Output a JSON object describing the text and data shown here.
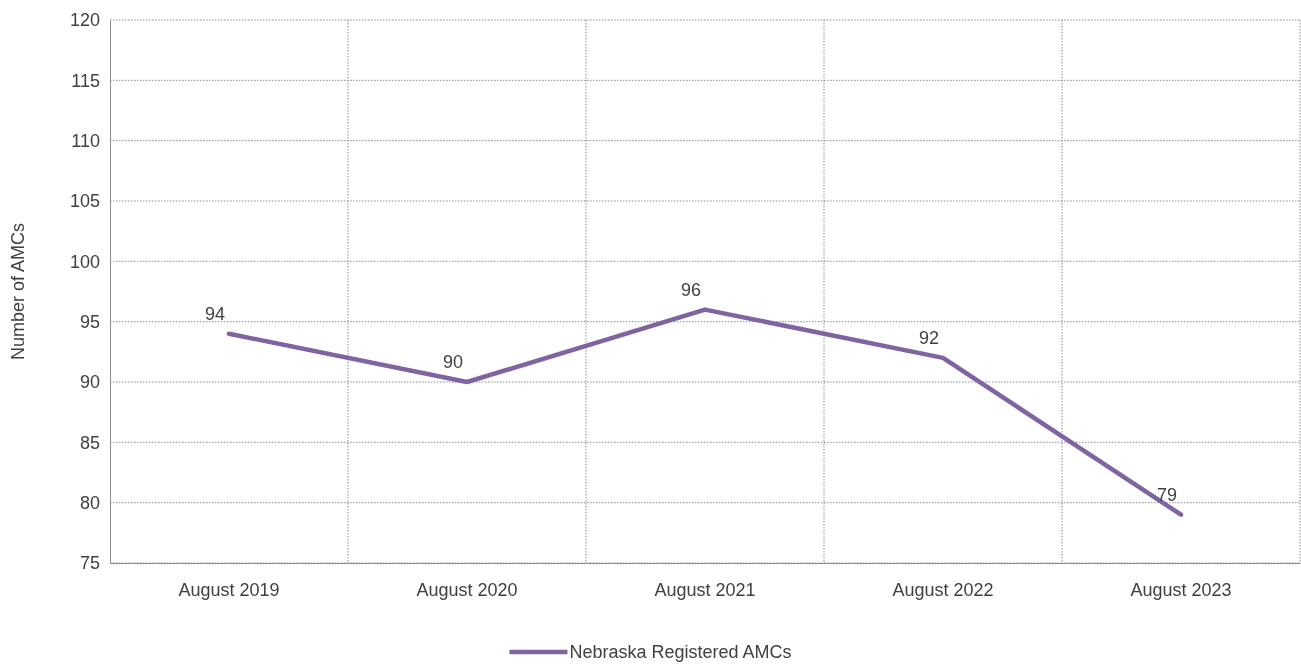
{
  "chart_data": {
    "type": "line",
    "ylabel": "Number of AMCs",
    "categories": [
      "August 2019",
      "August 2020",
      "August 2021",
      "August 2022",
      "August 2023"
    ],
    "series": [
      {
        "name": "Nebraska Registered AMCs",
        "color": "#8064a2",
        "values": [
          94,
          90,
          96,
          92,
          79
        ]
      }
    ],
    "ylim": [
      75,
      120
    ],
    "yticks": [
      75,
      80,
      85,
      90,
      95,
      100,
      105,
      110,
      115,
      120
    ],
    "grid": true,
    "legend": "bottom",
    "data_labels": true,
    "marker": "none",
    "line_style": "solid"
  }
}
